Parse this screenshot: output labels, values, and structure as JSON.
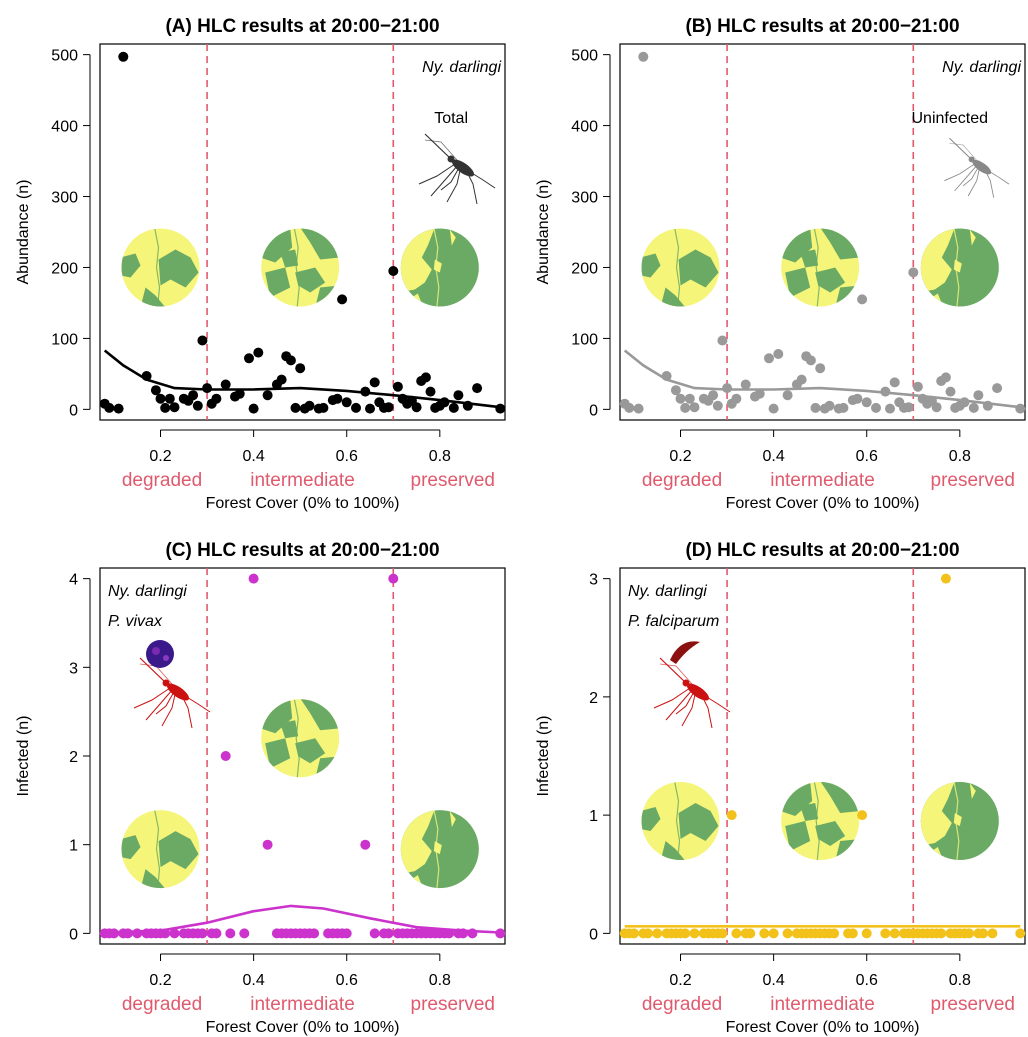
{
  "colors": {
    "threshold": "#e05a6e",
    "forest_green": "#6aaa64",
    "degraded_yellow": "#f5f57a",
    "total": "#000000",
    "uninfected": "#999999",
    "vivax": "#cc33cc",
    "falciparum": "#f2c21b",
    "mosquito_red": "#cc1111"
  },
  "chart_data": [
    {
      "panel": "A",
      "type": "scatter",
      "title": "(A) HLC results at 20:00−21:00",
      "xlabel": "Forest Cover (0% to 100%)",
      "ylabel": "Abundance (n)",
      "xlim": [
        0.07,
        0.94
      ],
      "ylim": [
        -15,
        515
      ],
      "xticks": [
        "0.2",
        "0.4",
        "0.6",
        "0.8"
      ],
      "yticks": [
        "0",
        "100",
        "200",
        "300",
        "400",
        "500"
      ],
      "thresholds": [
        0.3,
        0.7
      ],
      "categories": [
        "degraded",
        "intermediate",
        "preserved"
      ],
      "species_label": "Ny. darlingi",
      "group_label": "Total",
      "point_color": "#000000",
      "points": [
        [
          0.08,
          8
        ],
        [
          0.09,
          2
        ],
        [
          0.11,
          1
        ],
        [
          0.12,
          497
        ],
        [
          0.17,
          47
        ],
        [
          0.19,
          27
        ],
        [
          0.2,
          15
        ],
        [
          0.21,
          2
        ],
        [
          0.22,
          15
        ],
        [
          0.23,
          3
        ],
        [
          0.25,
          15
        ],
        [
          0.26,
          12
        ],
        [
          0.27,
          20
        ],
        [
          0.28,
          5
        ],
        [
          0.29,
          97
        ],
        [
          0.3,
          30
        ],
        [
          0.31,
          8
        ],
        [
          0.32,
          15
        ],
        [
          0.34,
          35
        ],
        [
          0.36,
          18
        ],
        [
          0.37,
          22
        ],
        [
          0.39,
          72
        ],
        [
          0.4,
          1
        ],
        [
          0.41,
          80
        ],
        [
          0.43,
          20
        ],
        [
          0.45,
          35
        ],
        [
          0.46,
          42
        ],
        [
          0.47,
          75
        ],
        [
          0.48,
          69
        ],
        [
          0.49,
          2
        ],
        [
          0.5,
          58
        ],
        [
          0.51,
          1
        ],
        [
          0.52,
          5
        ],
        [
          0.54,
          1
        ],
        [
          0.55,
          2
        ],
        [
          0.57,
          13
        ],
        [
          0.58,
          15
        ],
        [
          0.59,
          155
        ],
        [
          0.6,
          10
        ],
        [
          0.62,
          2
        ],
        [
          0.64,
          25
        ],
        [
          0.65,
          1
        ],
        [
          0.66,
          38
        ],
        [
          0.67,
          10
        ],
        [
          0.68,
          2
        ],
        [
          0.69,
          3
        ],
        [
          0.7,
          195
        ],
        [
          0.71,
          32
        ],
        [
          0.72,
          15
        ],
        [
          0.73,
          8
        ],
        [
          0.74,
          12
        ],
        [
          0.75,
          3
        ],
        [
          0.76,
          40
        ],
        [
          0.77,
          45
        ],
        [
          0.78,
          25
        ],
        [
          0.79,
          2
        ],
        [
          0.8,
          5
        ],
        [
          0.81,
          10
        ],
        [
          0.83,
          2
        ],
        [
          0.84,
          20
        ],
        [
          0.86,
          5
        ],
        [
          0.88,
          30
        ],
        [
          0.93,
          1
        ]
      ],
      "smooth": [
        [
          0.08,
          83
        ],
        [
          0.12,
          62
        ],
        [
          0.17,
          42
        ],
        [
          0.23,
          30
        ],
        [
          0.3,
          28
        ],
        [
          0.4,
          28
        ],
        [
          0.5,
          30
        ],
        [
          0.6,
          26
        ],
        [
          0.7,
          20
        ],
        [
          0.8,
          13
        ],
        [
          0.93,
          3
        ]
      ]
    },
    {
      "panel": "B",
      "type": "scatter",
      "title": "(B) HLC results at 20:00−21:00",
      "xlabel": "Forest Cover (0% to 100%)",
      "ylabel": "Abundance (n)",
      "xlim": [
        0.07,
        0.94
      ],
      "ylim": [
        -15,
        515
      ],
      "xticks": [
        "0.2",
        "0.4",
        "0.6",
        "0.8"
      ],
      "yticks": [
        "0",
        "100",
        "200",
        "300",
        "400",
        "500"
      ],
      "thresholds": [
        0.3,
        0.7
      ],
      "categories": [
        "degraded",
        "intermediate",
        "preserved"
      ],
      "species_label": "Ny. darlingi",
      "group_label": "Uninfected",
      "point_color": "#999999",
      "points": [
        [
          0.08,
          8
        ],
        [
          0.09,
          2
        ],
        [
          0.11,
          1
        ],
        [
          0.12,
          497
        ],
        [
          0.17,
          47
        ],
        [
          0.19,
          27
        ],
        [
          0.2,
          15
        ],
        [
          0.21,
          2
        ],
        [
          0.22,
          15
        ],
        [
          0.23,
          3
        ],
        [
          0.25,
          15
        ],
        [
          0.26,
          12
        ],
        [
          0.27,
          20
        ],
        [
          0.28,
          5
        ],
        [
          0.29,
          97
        ],
        [
          0.3,
          30
        ],
        [
          0.31,
          8
        ],
        [
          0.32,
          15
        ],
        [
          0.34,
          35
        ],
        [
          0.36,
          18
        ],
        [
          0.37,
          22
        ],
        [
          0.39,
          72
        ],
        [
          0.4,
          1
        ],
        [
          0.41,
          78
        ],
        [
          0.43,
          20
        ],
        [
          0.45,
          35
        ],
        [
          0.46,
          42
        ],
        [
          0.47,
          75
        ],
        [
          0.48,
          69
        ],
        [
          0.49,
          2
        ],
        [
          0.5,
          58
        ],
        [
          0.51,
          1
        ],
        [
          0.52,
          5
        ],
        [
          0.54,
          1
        ],
        [
          0.55,
          2
        ],
        [
          0.57,
          13
        ],
        [
          0.58,
          15
        ],
        [
          0.59,
          155
        ],
        [
          0.6,
          10
        ],
        [
          0.62,
          2
        ],
        [
          0.64,
          25
        ],
        [
          0.65,
          1
        ],
        [
          0.66,
          38
        ],
        [
          0.67,
          10
        ],
        [
          0.68,
          2
        ],
        [
          0.69,
          3
        ],
        [
          0.7,
          193
        ],
        [
          0.71,
          32
        ],
        [
          0.72,
          15
        ],
        [
          0.73,
          8
        ],
        [
          0.74,
          12
        ],
        [
          0.75,
          3
        ],
        [
          0.76,
          40
        ],
        [
          0.77,
          45
        ],
        [
          0.78,
          25
        ],
        [
          0.79,
          2
        ],
        [
          0.8,
          5
        ],
        [
          0.81,
          10
        ],
        [
          0.83,
          2
        ],
        [
          0.84,
          20
        ],
        [
          0.86,
          5
        ],
        [
          0.88,
          30
        ],
        [
          0.93,
          1
        ]
      ],
      "smooth": [
        [
          0.08,
          83
        ],
        [
          0.12,
          62
        ],
        [
          0.17,
          42
        ],
        [
          0.23,
          30
        ],
        [
          0.3,
          28
        ],
        [
          0.4,
          28
        ],
        [
          0.5,
          30
        ],
        [
          0.6,
          26
        ],
        [
          0.7,
          20
        ],
        [
          0.8,
          13
        ],
        [
          0.93,
          3
        ]
      ]
    },
    {
      "panel": "C",
      "type": "scatter",
      "title": "(C) HLC results at 20:00−21:00",
      "xlabel": "Forest Cover (0% to 100%)",
      "ylabel": "Infected (n)",
      "xlim": [
        0.07,
        0.94
      ],
      "ylim": [
        -0.12,
        4.12
      ],
      "xticks": [
        "0.2",
        "0.4",
        "0.6",
        "0.8"
      ],
      "yticks": [
        "0",
        "1",
        "2",
        "3",
        "4"
      ],
      "thresholds": [
        0.3,
        0.7
      ],
      "categories": [
        "degraded",
        "intermediate",
        "preserved"
      ],
      "species_label": "Ny. darlingi",
      "parasite_label": "P. vivax",
      "point_color": "#cc33cc",
      "points": [
        [
          0.08,
          0
        ],
        [
          0.09,
          0
        ],
        [
          0.1,
          0
        ],
        [
          0.12,
          0
        ],
        [
          0.13,
          0
        ],
        [
          0.15,
          0
        ],
        [
          0.17,
          0
        ],
        [
          0.18,
          0
        ],
        [
          0.19,
          0
        ],
        [
          0.2,
          0
        ],
        [
          0.21,
          0
        ],
        [
          0.23,
          0
        ],
        [
          0.25,
          0
        ],
        [
          0.26,
          0
        ],
        [
          0.27,
          0
        ],
        [
          0.28,
          0
        ],
        [
          0.29,
          0
        ],
        [
          0.31,
          0
        ],
        [
          0.32,
          0
        ],
        [
          0.34,
          2
        ],
        [
          0.35,
          0
        ],
        [
          0.38,
          0
        ],
        [
          0.4,
          4
        ],
        [
          0.43,
          1
        ],
        [
          0.45,
          0
        ],
        [
          0.46,
          0
        ],
        [
          0.47,
          0
        ],
        [
          0.48,
          0
        ],
        [
          0.49,
          0
        ],
        [
          0.5,
          0
        ],
        [
          0.51,
          0
        ],
        [
          0.52,
          0
        ],
        [
          0.53,
          0
        ],
        [
          0.56,
          0
        ],
        [
          0.57,
          0
        ],
        [
          0.58,
          0
        ],
        [
          0.59,
          0
        ],
        [
          0.6,
          0
        ],
        [
          0.64,
          1
        ],
        [
          0.66,
          0
        ],
        [
          0.68,
          0
        ],
        [
          0.69,
          0
        ],
        [
          0.7,
          4
        ],
        [
          0.71,
          0
        ],
        [
          0.72,
          0
        ],
        [
          0.73,
          0
        ],
        [
          0.74,
          0
        ],
        [
          0.75,
          0
        ],
        [
          0.76,
          0
        ],
        [
          0.77,
          0
        ],
        [
          0.78,
          0
        ],
        [
          0.79,
          0
        ],
        [
          0.8,
          0
        ],
        [
          0.81,
          0
        ],
        [
          0.82,
          0
        ],
        [
          0.84,
          0
        ],
        [
          0.85,
          0
        ],
        [
          0.87,
          0
        ],
        [
          0.93,
          0
        ]
      ],
      "smooth": [
        [
          0.08,
          0.01
        ],
        [
          0.2,
          0.03
        ],
        [
          0.3,
          0.12
        ],
        [
          0.4,
          0.25
        ],
        [
          0.48,
          0.31
        ],
        [
          0.55,
          0.28
        ],
        [
          0.65,
          0.17
        ],
        [
          0.75,
          0.07
        ],
        [
          0.85,
          0.03
        ],
        [
          0.93,
          0.01
        ]
      ]
    },
    {
      "panel": "D",
      "type": "scatter",
      "title": "(D) HLC results at 20:00−21:00",
      "xlabel": "Forest Cover (0% to 100%)",
      "ylabel": "Infected (n)",
      "xlim": [
        0.07,
        0.94
      ],
      "ylim": [
        -0.09,
        3.09
      ],
      "xticks": [
        "0.2",
        "0.4",
        "0.6",
        "0.8"
      ],
      "yticks": [
        "0",
        "1",
        "2",
        "3"
      ],
      "thresholds": [
        0.3,
        0.7
      ],
      "categories": [
        "degraded",
        "intermediate",
        "preserved"
      ],
      "species_label": "Ny. darlingi",
      "parasite_label": "P. falciparum",
      "point_color": "#f2c21b",
      "points": [
        [
          0.08,
          0
        ],
        [
          0.09,
          0
        ],
        [
          0.1,
          0
        ],
        [
          0.12,
          0
        ],
        [
          0.13,
          0
        ],
        [
          0.15,
          0
        ],
        [
          0.17,
          0
        ],
        [
          0.18,
          0
        ],
        [
          0.19,
          0
        ],
        [
          0.2,
          0
        ],
        [
          0.21,
          0
        ],
        [
          0.23,
          0
        ],
        [
          0.25,
          0
        ],
        [
          0.26,
          0
        ],
        [
          0.27,
          0
        ],
        [
          0.28,
          0
        ],
        [
          0.29,
          0
        ],
        [
          0.31,
          1
        ],
        [
          0.32,
          0
        ],
        [
          0.34,
          0
        ],
        [
          0.35,
          0
        ],
        [
          0.38,
          0
        ],
        [
          0.4,
          0
        ],
        [
          0.43,
          0
        ],
        [
          0.45,
          0
        ],
        [
          0.46,
          0
        ],
        [
          0.47,
          0
        ],
        [
          0.48,
          0
        ],
        [
          0.49,
          0
        ],
        [
          0.5,
          0
        ],
        [
          0.51,
          0
        ],
        [
          0.52,
          0
        ],
        [
          0.53,
          0
        ],
        [
          0.56,
          0
        ],
        [
          0.57,
          0
        ],
        [
          0.59,
          1
        ],
        [
          0.6,
          0
        ],
        [
          0.64,
          0
        ],
        [
          0.66,
          0
        ],
        [
          0.68,
          0
        ],
        [
          0.69,
          0
        ],
        [
          0.7,
          0
        ],
        [
          0.71,
          0
        ],
        [
          0.72,
          0
        ],
        [
          0.73,
          0
        ],
        [
          0.74,
          0
        ],
        [
          0.75,
          0
        ],
        [
          0.76,
          0
        ],
        [
          0.77,
          3
        ],
        [
          0.78,
          0
        ],
        [
          0.79,
          0
        ],
        [
          0.8,
          0
        ],
        [
          0.81,
          0
        ],
        [
          0.82,
          0
        ],
        [
          0.84,
          0
        ],
        [
          0.85,
          0
        ],
        [
          0.87,
          0
        ],
        [
          0.93,
          0
        ]
      ],
      "smooth": [
        [
          0.08,
          0.06
        ],
        [
          0.5,
          0.06
        ],
        [
          0.93,
          0.06
        ]
      ]
    }
  ]
}
